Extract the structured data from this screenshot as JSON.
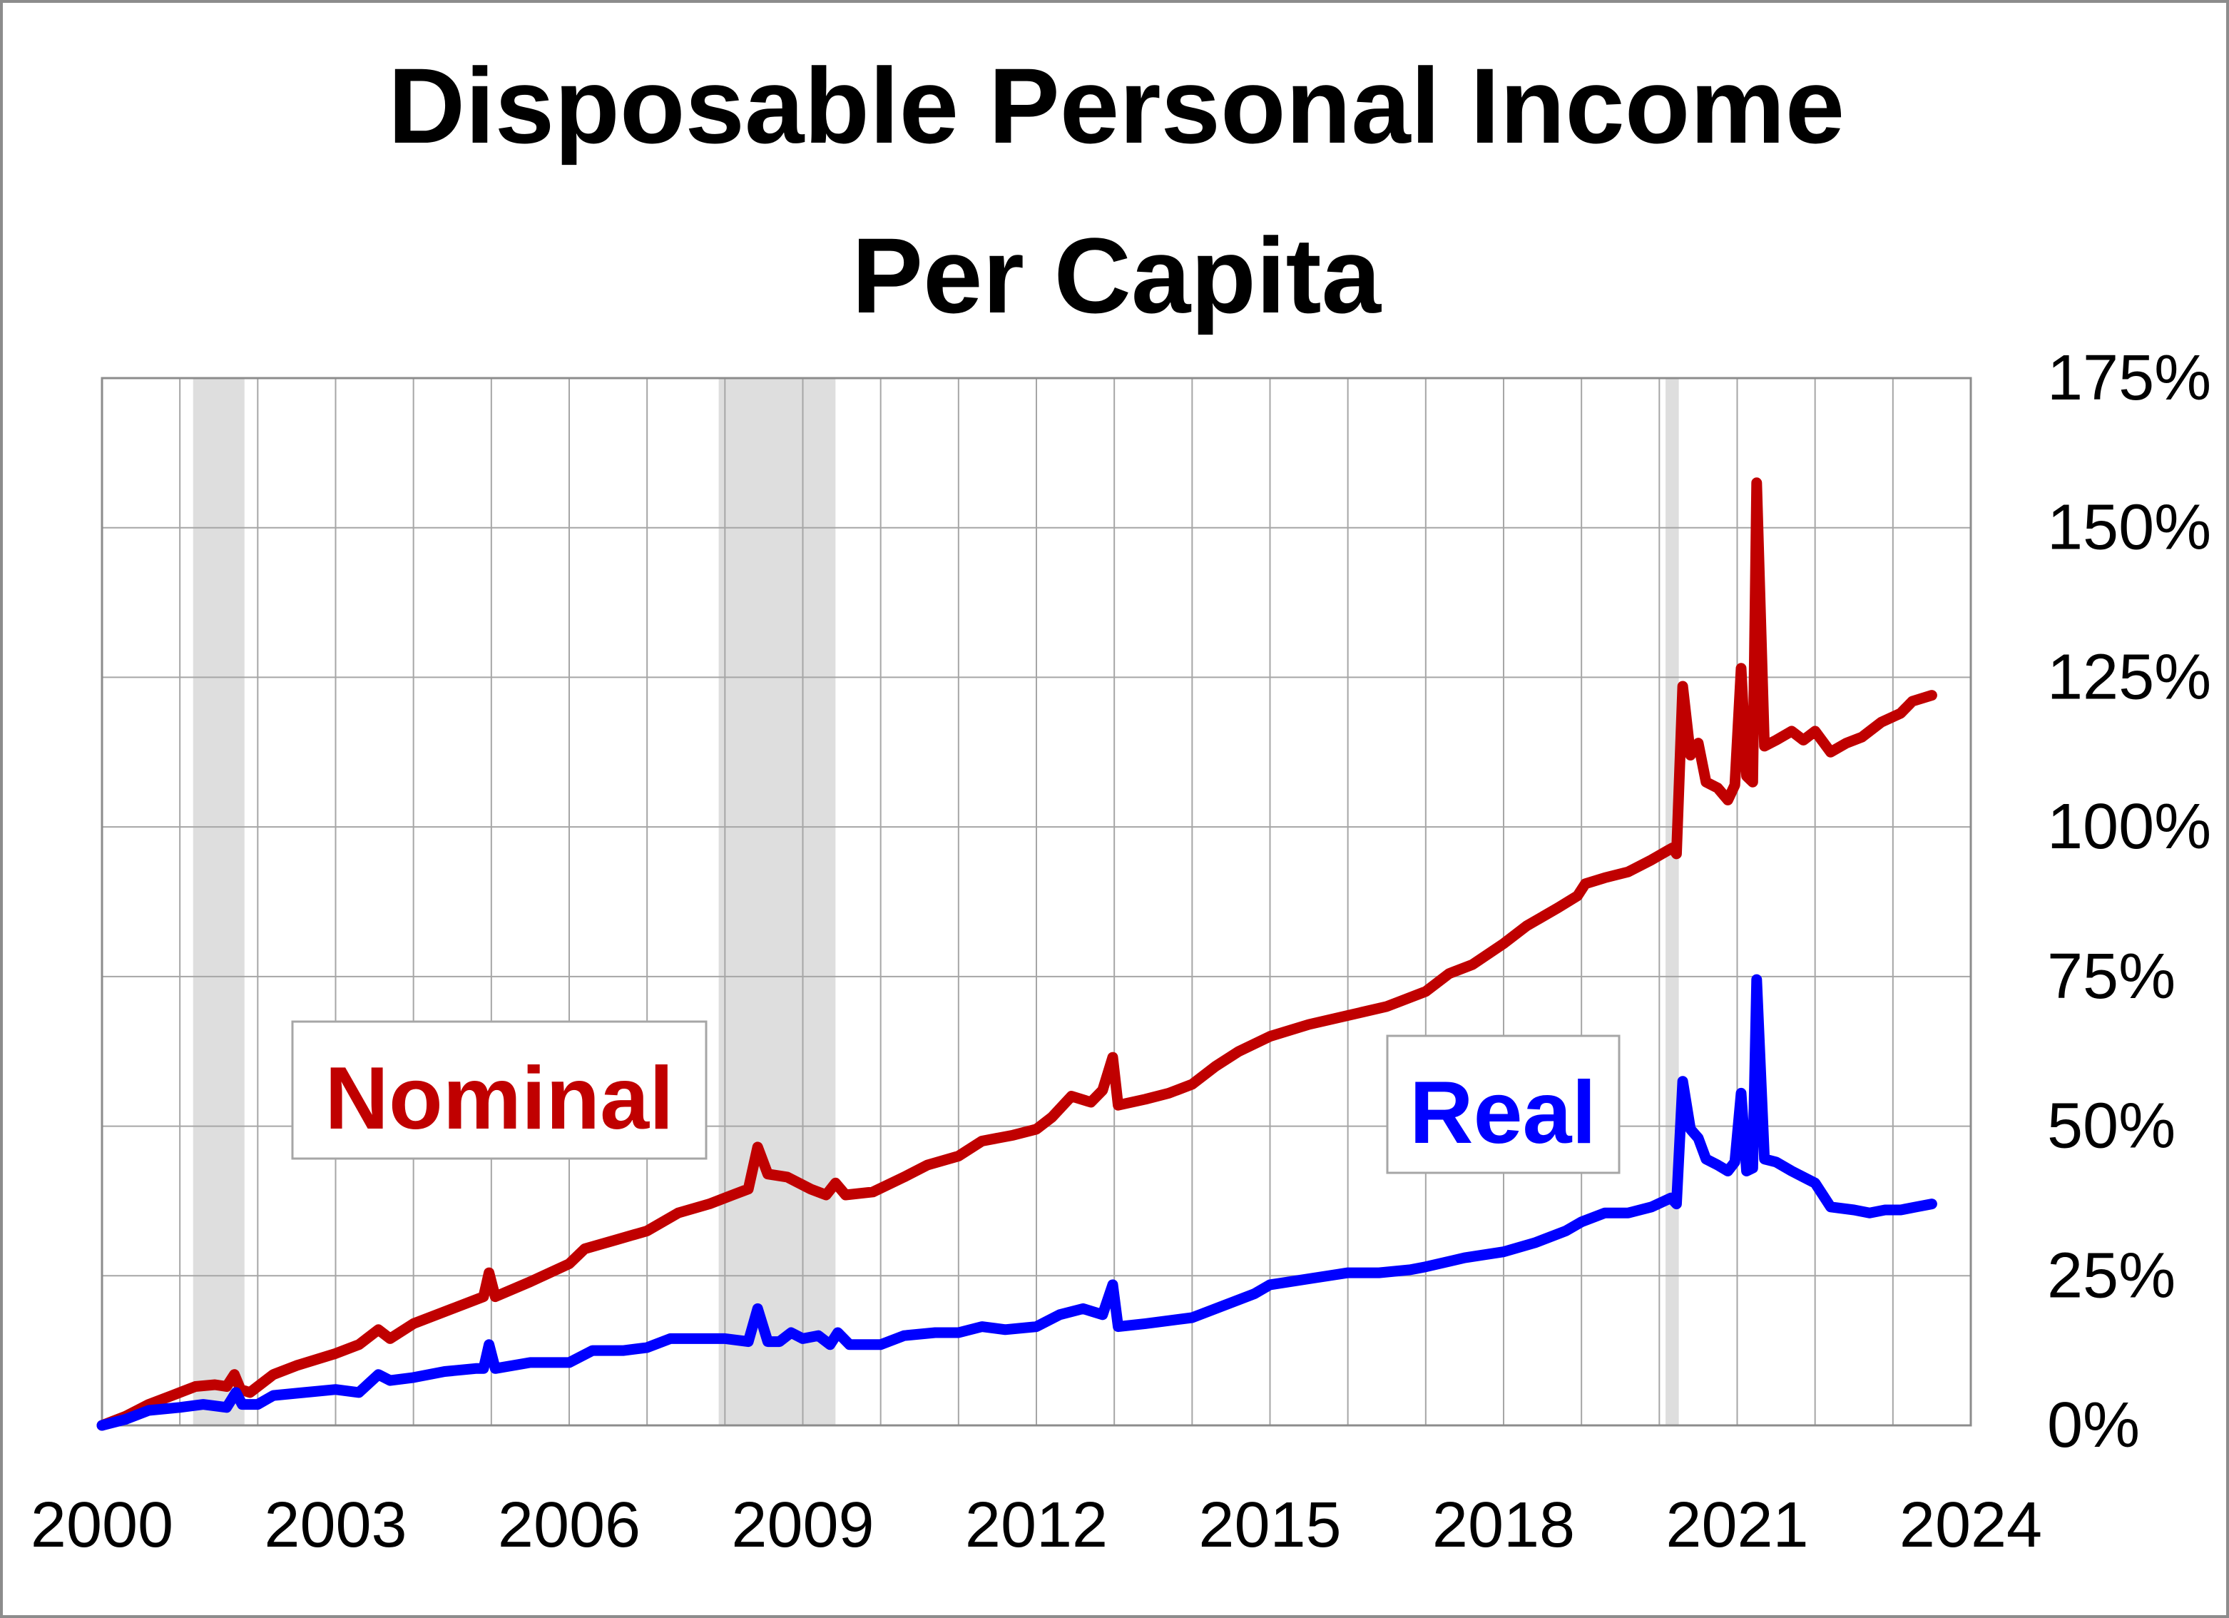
{
  "chart_data": {
    "type": "line",
    "title_lines": [
      "Disposable Personal Income",
      "Per Capita"
    ],
    "xlabel": "",
    "ylabel": "",
    "x_ticks": [
      "2000",
      "2003",
      "2006",
      "2009",
      "2012",
      "2015",
      "2018",
      "2021",
      "2024"
    ],
    "y_ticks": [
      "0%",
      "25%",
      "50%",
      "75%",
      "100%",
      "125%",
      "150%",
      "175%"
    ],
    "xlim": [
      2000,
      2024
    ],
    "ylim": [
      0,
      175
    ],
    "grid": true,
    "recession_bands": [
      [
        2001.17,
        2001.83
      ],
      [
        2007.92,
        2009.42
      ],
      [
        2020.08,
        2020.25
      ]
    ],
    "series": [
      {
        "name": "Nominal",
        "color": "#c00000",
        "points": [
          [
            2000.0,
            0
          ],
          [
            2000.3,
            1.5
          ],
          [
            2000.6,
            3.5
          ],
          [
            2000.9,
            5
          ],
          [
            2001.2,
            6.5
          ],
          [
            2001.45,
            6.8
          ],
          [
            2001.6,
            6.5
          ],
          [
            2001.7,
            8.5
          ],
          [
            2001.78,
            6
          ],
          [
            2001.9,
            5.5
          ],
          [
            2002.0,
            6.5
          ],
          [
            2002.2,
            8.5
          ],
          [
            2002.5,
            10
          ],
          [
            2003.0,
            12
          ],
          [
            2003.3,
            13.5
          ],
          [
            2003.55,
            16
          ],
          [
            2003.7,
            14.5
          ],
          [
            2004.0,
            17
          ],
          [
            2004.5,
            19.5
          ],
          [
            2004.9,
            21.5
          ],
          [
            2004.97,
            25.5
          ],
          [
            2005.05,
            21.5
          ],
          [
            2005.5,
            24
          ],
          [
            2006.0,
            27
          ],
          [
            2006.2,
            29.5
          ],
          [
            2006.6,
            31
          ],
          [
            2007.0,
            32.5
          ],
          [
            2007.4,
            35.5
          ],
          [
            2007.8,
            37
          ],
          [
            2008.1,
            38.5
          ],
          [
            2008.3,
            39.5
          ],
          [
            2008.42,
            46.5
          ],
          [
            2008.55,
            42
          ],
          [
            2008.8,
            41.5
          ],
          [
            2009.1,
            39.5
          ],
          [
            2009.3,
            38.5
          ],
          [
            2009.42,
            40.5
          ],
          [
            2009.55,
            38.5
          ],
          [
            2009.9,
            39
          ],
          [
            2010.3,
            41.5
          ],
          [
            2010.6,
            43.5
          ],
          [
            2011.0,
            45
          ],
          [
            2011.3,
            47.5
          ],
          [
            2011.7,
            48.5
          ],
          [
            2012.0,
            49.5
          ],
          [
            2012.2,
            51.5
          ],
          [
            2012.45,
            55
          ],
          [
            2012.7,
            54
          ],
          [
            2012.85,
            56
          ],
          [
            2012.98,
            61.5
          ],
          [
            2013.05,
            53.5
          ],
          [
            2013.4,
            54.5
          ],
          [
            2013.7,
            55.5
          ],
          [
            2014.0,
            57
          ],
          [
            2014.3,
            60
          ],
          [
            2014.6,
            62.5
          ],
          [
            2015.0,
            65
          ],
          [
            2015.5,
            67
          ],
          [
            2016.0,
            68.5
          ],
          [
            2016.5,
            70
          ],
          [
            2017.0,
            72.5
          ],
          [
            2017.3,
            75.5
          ],
          [
            2017.6,
            77
          ],
          [
            2018.0,
            80.5
          ],
          [
            2018.3,
            83.5
          ],
          [
            2018.7,
            86.5
          ],
          [
            2018.95,
            88.5
          ],
          [
            2019.05,
            90.5
          ],
          [
            2019.3,
            91.5
          ],
          [
            2019.6,
            92.5
          ],
          [
            2019.9,
            94.5
          ],
          [
            2020.1,
            96
          ],
          [
            2020.17,
            96.5
          ],
          [
            2020.22,
            95.5
          ],
          [
            2020.3,
            123.5
          ],
          [
            2020.4,
            112
          ],
          [
            2020.5,
            114
          ],
          [
            2020.6,
            107.5
          ],
          [
            2020.75,
            106.5
          ],
          [
            2020.88,
            104.5
          ],
          [
            2020.97,
            107
          ],
          [
            2021.05,
            126.5
          ],
          [
            2021.12,
            108.5
          ],
          [
            2021.2,
            107.5
          ],
          [
            2021.25,
            157.5
          ],
          [
            2021.35,
            113.5
          ],
          [
            2021.5,
            114.5
          ],
          [
            2021.7,
            116
          ],
          [
            2021.85,
            114.5
          ],
          [
            2022.0,
            116
          ],
          [
            2022.2,
            112.5
          ],
          [
            2022.4,
            114
          ],
          [
            2022.6,
            115
          ],
          [
            2022.85,
            117.5
          ],
          [
            2023.1,
            119
          ],
          [
            2023.25,
            121
          ],
          [
            2023.5,
            122
          ]
        ]
      },
      {
        "name": "Real",
        "color": "#0000ff",
        "points": [
          [
            2000.0,
            0
          ],
          [
            2000.3,
            1
          ],
          [
            2000.6,
            2.5
          ],
          [
            2001.0,
            3
          ],
          [
            2001.3,
            3.5
          ],
          [
            2001.6,
            3
          ],
          [
            2001.72,
            5.5
          ],
          [
            2001.8,
            3.5
          ],
          [
            2002.0,
            3.5
          ],
          [
            2002.2,
            5
          ],
          [
            2002.6,
            5.5
          ],
          [
            2003.0,
            6
          ],
          [
            2003.3,
            5.5
          ],
          [
            2003.55,
            8.5
          ],
          [
            2003.7,
            7.5
          ],
          [
            2004.0,
            8
          ],
          [
            2004.4,
            9
          ],
          [
            2004.8,
            9.5
          ],
          [
            2004.9,
            9.5
          ],
          [
            2004.97,
            13.5
          ],
          [
            2005.05,
            9.5
          ],
          [
            2005.5,
            10.5
          ],
          [
            2006.0,
            10.5
          ],
          [
            2006.3,
            12.5
          ],
          [
            2006.7,
            12.5
          ],
          [
            2007.0,
            13
          ],
          [
            2007.3,
            14.5
          ],
          [
            2007.6,
            14.5
          ],
          [
            2008.0,
            14.5
          ],
          [
            2008.3,
            14
          ],
          [
            2008.42,
            19.5
          ],
          [
            2008.55,
            14
          ],
          [
            2008.7,
            14
          ],
          [
            2008.85,
            15.5
          ],
          [
            2009.0,
            14.5
          ],
          [
            2009.2,
            15
          ],
          [
            2009.35,
            13.5
          ],
          [
            2009.45,
            15.5
          ],
          [
            2009.6,
            13.5
          ],
          [
            2010.0,
            13.5
          ],
          [
            2010.3,
            15
          ],
          [
            2010.7,
            15.5
          ],
          [
            2011.0,
            15.5
          ],
          [
            2011.3,
            16.5
          ],
          [
            2011.6,
            16
          ],
          [
            2012.0,
            16.5
          ],
          [
            2012.3,
            18.5
          ],
          [
            2012.6,
            19.5
          ],
          [
            2012.85,
            18.5
          ],
          [
            2012.98,
            23.5
          ],
          [
            2013.05,
            16.5
          ],
          [
            2013.4,
            17
          ],
          [
            2013.7,
            17.5
          ],
          [
            2014.0,
            18
          ],
          [
            2014.4,
            20
          ],
          [
            2014.8,
            22
          ],
          [
            2015.0,
            23.5
          ],
          [
            2015.5,
            24.5
          ],
          [
            2016.0,
            25.5
          ],
          [
            2016.4,
            25.5
          ],
          [
            2016.8,
            26
          ],
          [
            2017.0,
            26.5
          ],
          [
            2017.5,
            28
          ],
          [
            2018.0,
            29
          ],
          [
            2018.4,
            30.5
          ],
          [
            2018.8,
            32.5
          ],
          [
            2019.0,
            34
          ],
          [
            2019.3,
            35.5
          ],
          [
            2019.6,
            35.5
          ],
          [
            2019.9,
            36.5
          ],
          [
            2020.15,
            38
          ],
          [
            2020.22,
            37
          ],
          [
            2020.3,
            57.5
          ],
          [
            2020.4,
            49.5
          ],
          [
            2020.5,
            48
          ],
          [
            2020.6,
            44.5
          ],
          [
            2020.75,
            43.5
          ],
          [
            2020.88,
            42.5
          ],
          [
            2020.97,
            44
          ],
          [
            2021.05,
            55.5
          ],
          [
            2021.12,
            42.5
          ],
          [
            2021.2,
            43
          ],
          [
            2021.25,
            74.5
          ],
          [
            2021.35,
            44.5
          ],
          [
            2021.5,
            44
          ],
          [
            2021.7,
            42.5
          ],
          [
            2021.85,
            41.5
          ],
          [
            2022.0,
            40.5
          ],
          [
            2022.2,
            36.5
          ],
          [
            2022.5,
            36
          ],
          [
            2022.7,
            35.5
          ],
          [
            2022.9,
            36
          ],
          [
            2023.1,
            36
          ],
          [
            2023.3,
            36.5
          ],
          [
            2023.5,
            37
          ]
        ]
      }
    ],
    "annotations": [
      {
        "text": "Nominal",
        "color": "#c00000"
      },
      {
        "text": "Real",
        "color": "#0000ff"
      }
    ]
  }
}
